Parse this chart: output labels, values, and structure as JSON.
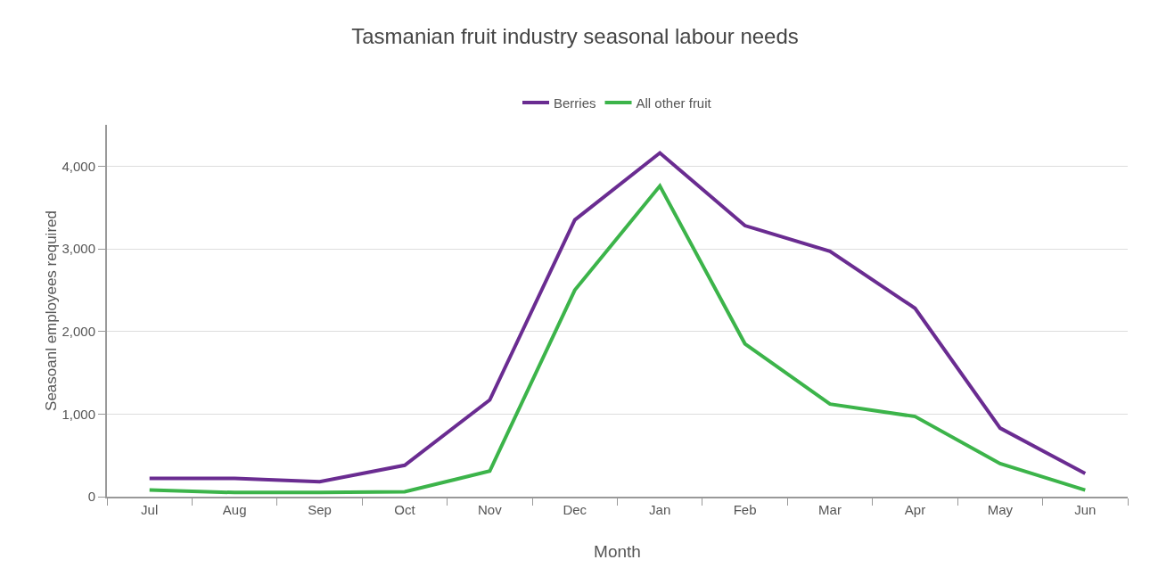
{
  "chart_data": {
    "type": "line",
    "title": "Tasmanian fruit industry seasonal labour needs",
    "xlabel": "Month",
    "ylabel": "Seasoanl employees required",
    "categories": [
      "Jul",
      "Aug",
      "Sep",
      "Oct",
      "Nov",
      "Dec",
      "Jan",
      "Feb",
      "Mar",
      "Apr",
      "May",
      "Jun"
    ],
    "series": [
      {
        "name": "Berries",
        "color": "#6a2c91",
        "values": [
          220,
          220,
          180,
          380,
          1170,
          3350,
          4160,
          3280,
          2970,
          2280,
          830,
          280
        ]
      },
      {
        "name": "All other fruit",
        "color": "#3cb44a",
        "values": [
          80,
          50,
          50,
          60,
          310,
          2500,
          3760,
          1850,
          1120,
          970,
          400,
          80
        ]
      }
    ],
    "ylim": [
      0,
      4500
    ],
    "yticks": [
      {
        "value": 0,
        "label": "0"
      },
      {
        "value": 1000,
        "label": "1,000"
      },
      {
        "value": 2000,
        "label": "2,000"
      },
      {
        "value": 3000,
        "label": "3,000"
      },
      {
        "value": 4000,
        "label": "4,000"
      }
    ],
    "grid": "y",
    "legend": "top",
    "marker": "none",
    "line_style": "solid"
  }
}
